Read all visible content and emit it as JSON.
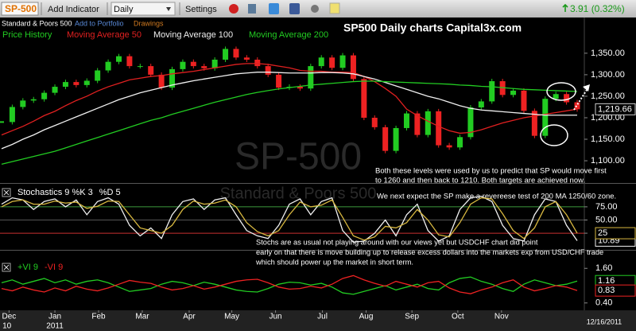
{
  "toolbar": {
    "symbol": "SP-500",
    "buttons": [
      "Add Indicator",
      "Daily",
      "Settings"
    ],
    "change": "3.91 (0.32%)",
    "name": "Standard & Poors 500",
    "portfolio": "Add to Portfolio",
    "drawings": "Drawings"
  },
  "x_axis": {
    "xlim": [
      0,
      54
    ],
    "xticks": [
      {
        "value": 0.7,
        "label": "Dec"
      },
      {
        "value": 5,
        "label": "Jan"
      },
      {
        "value": 9.1,
        "label": "Feb"
      },
      {
        "value": 13.2,
        "label": "Mar"
      },
      {
        "value": 17.6,
        "label": "Apr"
      },
      {
        "value": 21.6,
        "label": "May"
      },
      {
        "value": 25.7,
        "label": "Jun"
      },
      {
        "value": 30.1,
        "label": "Jul"
      },
      {
        "value": 34.2,
        "label": "Aug"
      },
      {
        "value": 38.5,
        "label": "Sep"
      },
      {
        "value": 42.8,
        "label": "Oct"
      },
      {
        "value": 46.9,
        "label": "Nov"
      }
    ],
    "year_labels": [
      {
        "value": 0.2,
        "label": "10"
      },
      {
        "value": 5,
        "label": "2011"
      }
    ],
    "date": "12/16/2011"
  },
  "chart_data": [
    {
      "type": "candlestick",
      "title": "SP500 Daily charts Capital3x.com",
      "watermark": "SP-500",
      "watermark_subtitle": "Standard & Poors 500",
      "annotations": [
        "Both these levels were used by us to predict that SP would move first",
        "to 1260 and then back to 1210. Both targets are achieved now.",
        "We next expect the SP make a revereese test of 200 MA 1250/60 zone."
      ],
      "ylim": [
        1052,
        1433
      ],
      "yticks": [
        {
          "value": 1100,
          "label": "1,100.00"
        },
        {
          "value": 1150,
          "label": "1,150.00"
        },
        {
          "value": 1200,
          "label": "1,200.00"
        },
        {
          "value": 1250,
          "label": "1,250.00"
        },
        {
          "value": 1300,
          "label": "1,300.00"
        },
        {
          "value": 1350,
          "label": "1,350.00"
        }
      ],
      "series": [
        {
          "name": "Price History",
          "color": "#22cc22",
          "down_color": "#ee2222",
          "values": [
            1190,
            1225,
            1240,
            1243,
            1258,
            1272,
            1283,
            1276,
            1286,
            1310,
            1330,
            1343,
            1320,
            1320,
            1300,
            1270,
            1313,
            1330,
            1320,
            1315,
            1335,
            1360,
            1340,
            1335,
            1320,
            1300,
            1270,
            1272,
            1268,
            1320,
            1340,
            1316,
            1345,
            1290,
            1200,
            1178,
            1123,
            1176,
            1210,
            1160,
            1215,
            1136,
            1131,
            1155,
            1224,
            1238,
            1285,
            1253,
            1263,
            1216,
            1158,
            1244,
            1255,
            1236,
            1219.66
          ],
          "value_labels": [
            null,
            null,
            null,
            null,
            null,
            null,
            null,
            null,
            null,
            null,
            null,
            null,
            null,
            null,
            null,
            null,
            null,
            null,
            null,
            null,
            null,
            null,
            null,
            null,
            null,
            null,
            null,
            null,
            null,
            null,
            null,
            null,
            null,
            null,
            null,
            null,
            null,
            null,
            null,
            null,
            null,
            null,
            null,
            null,
            null,
            null,
            null,
            null,
            null,
            null,
            null,
            null,
            null,
            null,
            "1,219.66"
          ]
        },
        {
          "name": "Moving Average 50",
          "color": "#e02020",
          "values": [
            1160,
            1170,
            1180,
            1192,
            1205,
            1215,
            1228,
            1240,
            1250,
            1262,
            1272,
            1280,
            1288,
            1292,
            1296,
            1298,
            1302,
            1305,
            1308,
            1312,
            1316,
            1320,
            1324,
            1326,
            1326,
            1324,
            1320,
            1316,
            1310,
            1308,
            1308,
            1306,
            1306,
            1305,
            1296,
            1284,
            1268,
            1250,
            1220,
            1205,
            1192,
            1180,
            1170,
            1164,
            1166,
            1172,
            1180,
            1188,
            1194,
            1200,
            1204,
            1208,
            1212,
            1216,
            1220
          ]
        },
        {
          "name": "Moving Average 100",
          "color": "#f0f0f0",
          "values": [
            1128,
            1138,
            1150,
            1160,
            1172,
            1182,
            1192,
            1202,
            1212,
            1222,
            1232,
            1242,
            1250,
            1258,
            1264,
            1270,
            1276,
            1281,
            1286,
            1290,
            1294,
            1298,
            1302,
            1304,
            1306,
            1306,
            1305,
            1304,
            1304,
            1304,
            1305,
            1305,
            1304,
            1302,
            1296,
            1290,
            1282,
            1274,
            1266,
            1258,
            1250,
            1244,
            1236,
            1228,
            1222,
            1218,
            1216,
            1214,
            1212,
            1210,
            1208,
            1206,
            1206,
            1206,
            1206
          ]
        },
        {
          "name": "Moving Average 200",
          "color": "#22cc22",
          "values": [
            1092,
            1098,
            1104,
            1110,
            1116,
            1122,
            1130,
            1138,
            1146,
            1154,
            1162,
            1170,
            1178,
            1186,
            1194,
            1200,
            1208,
            1215,
            1222,
            1229,
            1236,
            1242,
            1248,
            1254,
            1259,
            1263,
            1267,
            1270,
            1273,
            1276,
            1278,
            1280,
            1282,
            1284,
            1285,
            1285,
            1284,
            1283,
            1282,
            1281,
            1280,
            1279,
            1278,
            1276,
            1275,
            1273,
            1272,
            1270,
            1268,
            1266,
            1265,
            1264,
            1263,
            1262,
            1261
          ]
        }
      ]
    },
    {
      "type": "line",
      "annotations": [
        "Stochs are as usual not playing around with our views yet but USDCHF chart did point",
        "early on that there is move building up to release excess dollars into the markets exp from USD/CHF trade",
        "which should power up the market in short term."
      ],
      "ylim": [
        -5,
        105
      ],
      "grid": true,
      "grid_colors": [
        "#c83030",
        "#555555",
        "#3c9a3c"
      ],
      "yticks": [
        {
          "value": 25,
          "label": "25.00"
        },
        {
          "value": 50,
          "label": "50.00"
        },
        {
          "value": 75,
          "label": "75.00"
        }
      ],
      "series": [
        {
          "name": "Stochastics 9 %K 3",
          "color": "#f0f0f0",
          "values": [
            80,
            92,
            88,
            70,
            85,
            90,
            75,
            88,
            60,
            85,
            92,
            80,
            40,
            20,
            35,
            15,
            60,
            85,
            90,
            70,
            88,
            92,
            60,
            30,
            20,
            15,
            40,
            80,
            90,
            60,
            85,
            92,
            30,
            8,
            10,
            25,
            50,
            20,
            60,
            80,
            30,
            10,
            20,
            70,
            92,
            95,
            85,
            40,
            15,
            10,
            60,
            90,
            85,
            40,
            10.89
          ]
        },
        {
          "name": "%D 5",
          "color": "#d8b840",
          "values": [
            75,
            85,
            88,
            80,
            80,
            86,
            82,
            84,
            72,
            76,
            86,
            85,
            60,
            35,
            30,
            25,
            40,
            70,
            86,
            80,
            82,
            88,
            75,
            45,
            28,
            20,
            30,
            60,
            84,
            75,
            78,
            88,
            55,
            20,
            12,
            18,
            38,
            35,
            45,
            70,
            50,
            22,
            18,
            45,
            80,
            92,
            90,
            62,
            30,
            15,
            35,
            75,
            85,
            60,
            25
          ]
        }
      ]
    },
    {
      "type": "line",
      "ylim": [
        0.2,
        1.8
      ],
      "yticks": [
        {
          "value": 0.4,
          "label": "0.40"
        },
        {
          "value": 1.6,
          "label": "1.60"
        }
      ],
      "series": [
        {
          "name": "+VI 9",
          "color": "#22cc22",
          "values": [
            1.1,
            1.2,
            1.05,
            1.15,
            1.25,
            1.1,
            1.2,
            1.05,
            1.15,
            1.2,
            1.1,
            0.95,
            0.8,
            0.85,
            0.9,
            1.05,
            1.15,
            1.1,
            1.0,
            1.12,
            1.05,
            0.95,
            0.85,
            0.8,
            0.78,
            0.9,
            1.05,
            1.12,
            1.1,
            1.02,
            1.08,
            0.95,
            0.75,
            0.7,
            0.8,
            0.9,
            1.0,
            0.85,
            0.95,
            1.05,
            0.9,
            0.85,
            1.1,
            1.25,
            1.3,
            1.15,
            1.05,
            0.9,
            0.8,
            1.05,
            1.2,
            1.1,
            1.0,
            1.05,
            1.16
          ]
        },
        {
          "name": "-VI 9",
          "color": "#ee2222",
          "values": [
            0.9,
            0.82,
            0.95,
            0.85,
            0.78,
            0.92,
            0.82,
            0.98,
            0.88,
            0.82,
            0.92,
            1.05,
            1.18,
            1.12,
            1.08,
            0.95,
            0.85,
            0.9,
            1.0,
            0.88,
            0.95,
            1.05,
            1.15,
            1.2,
            1.22,
            1.1,
            0.95,
            0.88,
            0.9,
            0.98,
            0.92,
            1.05,
            1.25,
            1.35,
            1.2,
            1.08,
            0.98,
            1.15,
            1.05,
            0.95,
            1.1,
            1.15,
            0.92,
            0.78,
            0.72,
            0.85,
            0.95,
            1.1,
            1.2,
            0.95,
            0.82,
            0.9,
            1.0,
            0.95,
            0.83
          ]
        }
      ]
    }
  ]
}
